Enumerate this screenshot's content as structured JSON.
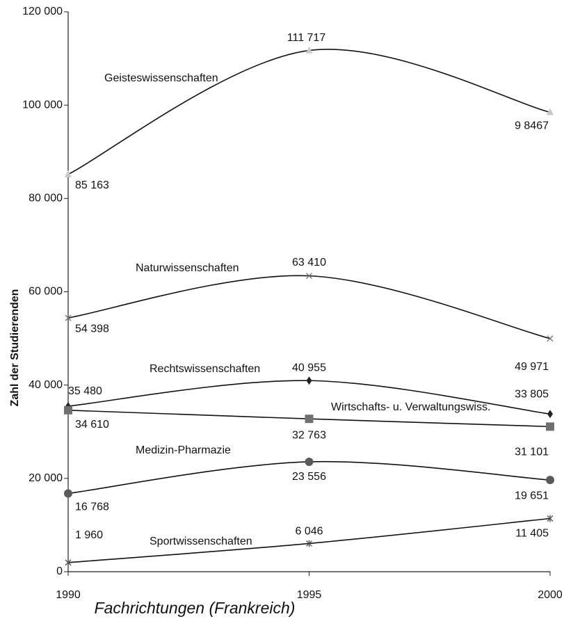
{
  "chart_data": {
    "type": "line",
    "xlabel": "Fachrichtungen (Frankreich)",
    "ylabel": "Zahl der Studierenden",
    "x": [
      1990,
      1995,
      2000
    ],
    "xlim": [
      1990,
      2000
    ],
    "xticks": [
      1990,
      1995,
      2000
    ],
    "ylim": [
      0,
      120000
    ],
    "yticks": [
      0,
      {
        "value": 20000,
        "label": "20 000"
      },
      {
        "value": 40000,
        "label": "40 000"
      },
      {
        "value": 60000,
        "label": "60 000"
      },
      {
        "value": 80000,
        "label": "80 000"
      },
      {
        "value": 100000,
        "label": "100 000"
      },
      {
        "value": 120000,
        "label": "120 000"
      }
    ],
    "grid": false,
    "series": [
      {
        "name": "Geisteswissenschaften",
        "color": "#111111",
        "marker": "triangle",
        "marker_color": "#c8c8c8",
        "values": [
          85163,
          111717,
          98467
        ],
        "value_labels": [
          "85 163",
          "111 717",
          "9 8467"
        ]
      },
      {
        "name": "Naturwissenschaften",
        "color": "#111111",
        "marker": "x",
        "marker_color": "#777777",
        "values": [
          54398,
          63410,
          49971
        ],
        "value_labels": [
          "54 398",
          "63 410",
          "49 971"
        ]
      },
      {
        "name": "Rechtswissenschaften",
        "color": "#111111",
        "marker": "diamond",
        "marker_color": "#222222",
        "values": [
          35480,
          40955,
          33805
        ],
        "value_labels": [
          "35 480",
          "40 955",
          "33 805"
        ]
      },
      {
        "name": "Wirtschafts- u. Verwaltungswiss.",
        "color": "#111111",
        "marker": "square",
        "marker_color": "#707070",
        "values": [
          34610,
          32763,
          31101
        ],
        "value_labels": [
          "34 610",
          "32 763",
          "31 101"
        ]
      },
      {
        "name": "Medizin-Pharmazie",
        "color": "#111111",
        "marker": "circle",
        "marker_color": "#5a5a5a",
        "values": [
          16768,
          23556,
          19651
        ],
        "value_labels": [
          "16 768",
          "23 556",
          "19 651"
        ]
      },
      {
        "name": "Sportwissenschaften",
        "color": "#111111",
        "marker": "asterisk",
        "marker_color": "#555555",
        "values": [
          1960,
          6046,
          11405
        ],
        "value_labels": [
          "1 960",
          "6 046",
          "11 405"
        ]
      }
    ]
  }
}
